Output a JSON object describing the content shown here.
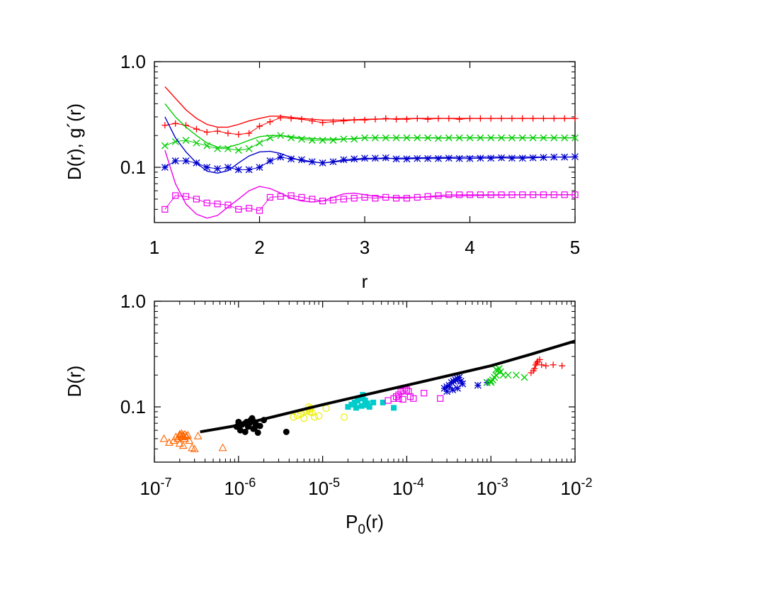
{
  "chart_data": [
    {
      "type": "line",
      "x_scale": "linear",
      "y_scale": "log",
      "xlim": [
        1,
        5
      ],
      "ylim": [
        0.03,
        1.0
      ],
      "xlabel": "r",
      "ylabel": "D(r), g´(r)",
      "x_ticks": [
        "1",
        "2",
        "3",
        "4",
        "5"
      ],
      "y_ticks": [
        "1.0",
        "0.1"
      ],
      "grid": false,
      "legend": "none",
      "series": [
        {
          "kind": "line",
          "color": "#ff0000",
          "x": [
            1.1,
            1.2,
            1.3,
            1.4,
            1.5,
            1.6,
            1.7,
            1.8,
            1.9,
            2.0,
            2.1,
            2.2,
            2.4,
            2.6,
            2.8,
            3.0,
            3.5,
            4.0,
            4.5,
            5.0
          ],
          "y": [
            0.58,
            0.45,
            0.35,
            0.29,
            0.255,
            0.24,
            0.24,
            0.255,
            0.275,
            0.29,
            0.305,
            0.305,
            0.29,
            0.28,
            0.28,
            0.285,
            0.29,
            0.29,
            0.29,
            0.29
          ]
        },
        {
          "kind": "markers",
          "marker": "plus",
          "color": "#ff0000",
          "x": [
            1.1,
            1.2,
            1.3,
            1.4,
            1.5,
            1.6,
            1.7,
            1.8,
            1.9,
            2.0,
            2.1,
            2.2,
            2.3,
            2.4,
            2.5,
            2.6,
            2.7,
            2.8,
            2.9,
            3.0,
            3.1,
            3.2,
            3.3,
            3.4,
            3.5,
            3.6,
            3.7,
            3.8,
            3.9,
            4.0,
            4.1,
            4.2,
            4.3,
            4.4,
            4.5,
            4.6,
            4.7,
            4.8,
            4.9,
            5.0
          ],
          "y": [
            0.25,
            0.26,
            0.25,
            0.23,
            0.215,
            0.22,
            0.21,
            0.205,
            0.21,
            0.245,
            0.27,
            0.295,
            0.29,
            0.285,
            0.275,
            0.265,
            0.27,
            0.275,
            0.28,
            0.28,
            0.285,
            0.29,
            0.285,
            0.285,
            0.29,
            0.285,
            0.29,
            0.29,
            0.285,
            0.29,
            0.29,
            0.29,
            0.29,
            0.29,
            0.29,
            0.29,
            0.29,
            0.29,
            0.29,
            0.29
          ]
        },
        {
          "kind": "line",
          "color": "#00cc00",
          "x": [
            1.1,
            1.2,
            1.3,
            1.4,
            1.5,
            1.6,
            1.7,
            1.8,
            1.9,
            2.0,
            2.1,
            2.2,
            2.4,
            2.6,
            2.8,
            3.0,
            3.5,
            4.0,
            4.5,
            5.0
          ],
          "y": [
            0.4,
            0.3,
            0.24,
            0.2,
            0.17,
            0.155,
            0.155,
            0.165,
            0.18,
            0.195,
            0.2,
            0.2,
            0.19,
            0.185,
            0.185,
            0.19,
            0.19,
            0.19,
            0.19,
            0.19
          ]
        },
        {
          "kind": "markers",
          "marker": "cross",
          "color": "#00cc00",
          "x": [
            1.1,
            1.2,
            1.3,
            1.4,
            1.5,
            1.6,
            1.7,
            1.8,
            1.9,
            2.0,
            2.1,
            2.2,
            2.3,
            2.4,
            2.5,
            2.6,
            2.7,
            2.8,
            2.9,
            3.0,
            3.1,
            3.2,
            3.3,
            3.4,
            3.5,
            3.6,
            3.7,
            3.8,
            3.9,
            4.0,
            4.1,
            4.2,
            4.3,
            4.4,
            4.5,
            4.6,
            4.7,
            4.8,
            4.9,
            5.0
          ],
          "y": [
            0.16,
            0.175,
            0.18,
            0.17,
            0.16,
            0.15,
            0.15,
            0.145,
            0.15,
            0.17,
            0.19,
            0.2,
            0.19,
            0.185,
            0.18,
            0.18,
            0.18,
            0.185,
            0.185,
            0.19,
            0.19,
            0.19,
            0.19,
            0.19,
            0.19,
            0.19,
            0.188,
            0.19,
            0.19,
            0.19,
            0.19,
            0.19,
            0.19,
            0.19,
            0.19,
            0.19,
            0.19,
            0.19,
            0.19,
            0.19
          ]
        },
        {
          "kind": "line",
          "color": "#0000cc",
          "x": [
            1.1,
            1.2,
            1.3,
            1.4,
            1.5,
            1.6,
            1.7,
            1.8,
            1.9,
            2.0,
            2.1,
            2.2,
            2.3,
            2.4,
            2.6,
            2.8,
            3.0,
            3.5,
            4.0,
            4.5,
            5.0
          ],
          "y": [
            0.3,
            0.19,
            0.14,
            0.11,
            0.092,
            0.088,
            0.093,
            0.11,
            0.128,
            0.14,
            0.142,
            0.135,
            0.124,
            0.115,
            0.11,
            0.115,
            0.12,
            0.123,
            0.125,
            0.125,
            0.125
          ]
        },
        {
          "kind": "markers",
          "marker": "star",
          "color": "#0000cc",
          "x": [
            1.1,
            1.2,
            1.3,
            1.4,
            1.5,
            1.6,
            1.7,
            1.8,
            1.9,
            2.0,
            2.1,
            2.2,
            2.3,
            2.4,
            2.5,
            2.6,
            2.7,
            2.8,
            2.9,
            3.0,
            3.1,
            3.2,
            3.3,
            3.4,
            3.5,
            3.6,
            3.7,
            3.8,
            3.9,
            4.0,
            4.1,
            4.2,
            4.3,
            4.4,
            4.5,
            4.6,
            4.7,
            4.8,
            4.9,
            5.0
          ],
          "y": [
            0.1,
            0.115,
            0.115,
            0.11,
            0.1,
            0.097,
            0.1,
            0.095,
            0.095,
            0.1,
            0.115,
            0.125,
            0.12,
            0.118,
            0.113,
            0.11,
            0.113,
            0.118,
            0.12,
            0.122,
            0.122,
            0.123,
            0.12,
            0.12,
            0.121,
            0.121,
            0.121,
            0.122,
            0.121,
            0.121,
            0.122,
            0.122,
            0.123,
            0.122,
            0.122,
            0.123,
            0.124,
            0.125,
            0.125,
            0.126
          ]
        },
        {
          "kind": "line",
          "color": "#ee00ee",
          "x": [
            1.1,
            1.2,
            1.3,
            1.4,
            1.5,
            1.6,
            1.7,
            1.8,
            1.9,
            2.0,
            2.1,
            2.2,
            2.3,
            2.4,
            2.5,
            2.6,
            2.7,
            2.8,
            2.9,
            3.0,
            3.2,
            3.5,
            4.0,
            4.5,
            5.0
          ],
          "y": [
            0.145,
            0.07,
            0.045,
            0.036,
            0.033,
            0.035,
            0.042,
            0.05,
            0.06,
            0.066,
            0.063,
            0.057,
            0.051,
            0.048,
            0.047,
            0.048,
            0.052,
            0.056,
            0.057,
            0.055,
            0.052,
            0.052,
            0.054,
            0.055,
            0.055
          ]
        },
        {
          "kind": "markers",
          "marker": "square",
          "color": "#ee00ee",
          "x": [
            1.1,
            1.2,
            1.3,
            1.4,
            1.5,
            1.6,
            1.7,
            1.8,
            1.9,
            2.0,
            2.1,
            2.2,
            2.3,
            2.4,
            2.5,
            2.6,
            2.7,
            2.8,
            2.9,
            3.0,
            3.1,
            3.2,
            3.3,
            3.4,
            3.5,
            3.6,
            3.7,
            3.8,
            3.9,
            4.0,
            4.1,
            4.2,
            4.3,
            4.4,
            4.5,
            4.6,
            4.7,
            4.8,
            4.9,
            5.0
          ],
          "y": [
            0.04,
            0.054,
            0.053,
            0.05,
            0.046,
            0.045,
            0.044,
            0.04,
            0.041,
            0.039,
            0.052,
            0.053,
            0.054,
            0.052,
            0.05,
            0.048,
            0.049,
            0.05,
            0.051,
            0.052,
            0.051,
            0.052,
            0.051,
            0.051,
            0.052,
            0.053,
            0.054,
            0.055,
            0.055,
            0.055,
            0.055,
            0.055,
            0.055,
            0.055,
            0.055,
            0.055,
            0.055,
            0.055,
            0.055,
            0.055
          ]
        }
      ]
    },
    {
      "type": "scatter",
      "x_scale": "log",
      "y_scale": "log",
      "xlim": [
        1e-07,
        0.01
      ],
      "ylim": [
        0.03,
        1.0
      ],
      "xlabel": "P₀(r)",
      "ylabel": "D(r)",
      "x_ticks": [
        {
          "base": "10",
          "exp": "-7"
        },
        {
          "base": "10",
          "exp": "-6"
        },
        {
          "base": "10",
          "exp": "-5"
        },
        {
          "base": "10",
          "exp": "-4"
        },
        {
          "base": "10",
          "exp": "-3"
        },
        {
          "base": "10",
          "exp": "-2"
        }
      ],
      "y_ticks": [
        "1.0",
        "0.1"
      ],
      "grid": false,
      "legend": "none",
      "fit_line": {
        "color": "#000000",
        "x": [
          3.5e-07,
          1e-06,
          1e-05,
          0.0001,
          0.001,
          0.003,
          0.01
        ],
        "y": [
          0.058,
          0.067,
          0.105,
          0.16,
          0.245,
          0.315,
          0.42
        ]
      },
      "series": [
        {
          "marker": "triangle",
          "color": "#ff6600",
          "x": [
            1.3e-07,
            1.5e-07,
            1.7e-07,
            1.8e-07,
            1.9e-07,
            2e-07,
            2e-07,
            2.1e-07,
            2.1e-07,
            2.2e-07,
            2.2e-07,
            2.3e-07,
            2.3e-07,
            2.4e-07,
            2.5e-07,
            2.6e-07,
            2.8e-07,
            3e-07,
            3.3e-07,
            6.5e-07,
            2e-07,
            2.2e-07
          ],
          "y": [
            0.05,
            0.046,
            0.048,
            0.052,
            0.05,
            0.054,
            0.055,
            0.053,
            0.056,
            0.054,
            0.052,
            0.055,
            0.05,
            0.053,
            0.054,
            0.048,
            0.041,
            0.04,
            0.053,
            0.041,
            0.045,
            0.043
          ]
        },
        {
          "marker": "circle-filled",
          "color": "#000000",
          "x": [
            9.5e-07,
            1e-06,
            1.05e-06,
            1.1e-06,
            1.2e-06,
            1.25e-06,
            1.3e-06,
            1.35e-06,
            1.4e-06,
            1.45e-06,
            1.5e-06,
            1.55e-06,
            1.6e-06,
            1.7e-06,
            1.8e-06,
            2e-06,
            3.7e-06,
            1.2e-06,
            1.5e-06
          ],
          "y": [
            0.065,
            0.072,
            0.06,
            0.068,
            0.07,
            0.072,
            0.065,
            0.07,
            0.075,
            0.078,
            0.073,
            0.063,
            0.069,
            0.057,
            0.066,
            0.075,
            0.058,
            0.058,
            0.062
          ]
        },
        {
          "marker": "circle-open",
          "color": "#eeee00",
          "x": [
            4.5e-06,
            5e-06,
            5.5e-06,
            6e-06,
            6.5e-06,
            6.8e-06,
            7e-06,
            7.2e-06,
            7.5e-06,
            8e-06,
            9e-06,
            1.1e-05,
            1.8e-05,
            6e-06,
            7e-06
          ],
          "y": [
            0.08,
            0.083,
            0.085,
            0.09,
            0.092,
            0.1,
            0.095,
            0.097,
            0.088,
            0.08,
            0.082,
            0.097,
            0.08,
            0.078,
            0.09
          ]
        },
        {
          "marker": "square-filled",
          "color": "#00cccc",
          "x": [
            2e-05,
            2.2e-05,
            2.4e-05,
            2.6e-05,
            2.8e-05,
            3e-05,
            3.2e-05,
            3.4e-05,
            3.6e-05,
            4e-05,
            5.2e-05,
            7e-05,
            2.5e-05,
            2.9e-05,
            3.3e-05
          ],
          "y": [
            0.1,
            0.105,
            0.11,
            0.115,
            0.12,
            0.13,
            0.115,
            0.108,
            0.1,
            0.11,
            0.11,
            0.098,
            0.098,
            0.102,
            0.104
          ]
        },
        {
          "marker": "square-open",
          "color": "#ee00ee",
          "x": [
            6e-05,
            7e-05,
            7.5e-05,
            8e-05,
            8.5e-05,
            9e-05,
            9.5e-05,
            0.0001,
            0.000105,
            0.00011,
            0.00012,
            0.00016,
            0.00025,
            8e-05,
            9e-05
          ],
          "y": [
            0.115,
            0.12,
            0.125,
            0.13,
            0.14,
            0.142,
            0.15,
            0.145,
            0.14,
            0.125,
            0.12,
            0.135,
            0.12,
            0.12,
            0.118
          ]
        },
        {
          "marker": "star",
          "color": "#0000cc",
          "x": [
            0.00028,
            0.0003,
            0.00032,
            0.00034,
            0.00036,
            0.00038,
            0.0004,
            0.00042,
            0.00044,
            0.00046,
            0.0007,
            0.0009,
            0.00035,
            0.0004,
            0.0003
          ],
          "y": [
            0.15,
            0.155,
            0.16,
            0.17,
            0.175,
            0.18,
            0.185,
            0.19,
            0.175,
            0.165,
            0.16,
            0.17,
            0.145,
            0.15,
            0.14
          ]
        },
        {
          "marker": "cross",
          "color": "#00cc00",
          "x": [
            0.0009,
            0.001,
            0.00105,
            0.0011,
            0.00115,
            0.0012,
            0.00125,
            0.0013,
            0.0014,
            0.0016,
            0.002,
            0.0025,
            0.00115,
            0.001
          ],
          "y": [
            0.17,
            0.175,
            0.18,
            0.19,
            0.2,
            0.22,
            0.23,
            0.215,
            0.2,
            0.2,
            0.2,
            0.19,
            0.225,
            0.17
          ]
        },
        {
          "marker": "plus",
          "color": "#ff0000",
          "x": [
            0.003,
            0.0032,
            0.0034,
            0.0036,
            0.0038,
            0.004,
            0.0045,
            0.0055,
            0.007,
            0.0033,
            0.0035
          ],
          "y": [
            0.21,
            0.22,
            0.25,
            0.27,
            0.28,
            0.25,
            0.245,
            0.25,
            0.245,
            0.23,
            0.26
          ]
        }
      ]
    }
  ]
}
